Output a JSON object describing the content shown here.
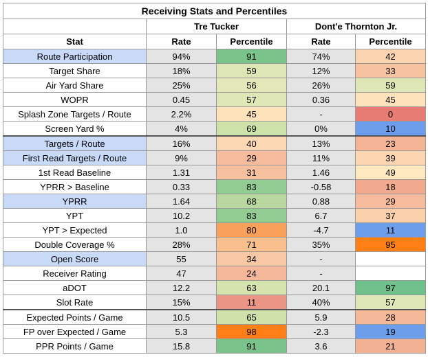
{
  "title": "Receiving Stats and Percentiles",
  "players": [
    "Tre Tucker",
    "Dont'e Thornton Jr."
  ],
  "columns": [
    "Stat",
    "Rate",
    "Percentile",
    "Rate",
    "Percentile"
  ],
  "rows": [
    [
      "Route Participation",
      "94%",
      "91",
      "74%",
      "42"
    ],
    [
      "Target Share",
      "18%",
      "59",
      "12%",
      "33"
    ],
    [
      "Air Yard Share",
      "25%",
      "56",
      "26%",
      "59"
    ],
    [
      "WOPR",
      "0.45",
      "57",
      "0.36",
      "45"
    ],
    [
      "Splash Zone Targets / Route",
      "2.2%",
      "45",
      "-",
      "0"
    ],
    [
      "Screen Yard %",
      "4%",
      "69",
      "0%",
      "10"
    ],
    [
      "Targets / Route",
      "16%",
      "40",
      "13%",
      "23"
    ],
    [
      "First Read Targets / Route",
      "9%",
      "29",
      "11%",
      "39"
    ],
    [
      "1st Read Baseline",
      "1.31",
      "31",
      "1.46",
      "49"
    ],
    [
      "YPRR > Baseline",
      "0.33",
      "83",
      "-0.58",
      "18"
    ],
    [
      "YPRR",
      "1.64",
      "68",
      "0.88",
      "29"
    ],
    [
      "YPT",
      "10.2",
      "83",
      "6.7",
      "37"
    ],
    [
      "YPT > Expected",
      "1.0",
      "80",
      "-4.7",
      "11"
    ],
    [
      "Double Coverage %",
      "28%",
      "71",
      "35%",
      "95"
    ],
    [
      "Open Score",
      "55",
      "34",
      "-",
      null
    ],
    [
      "Receiver Rating",
      "47",
      "24",
      "-",
      null
    ],
    [
      "aDOT",
      "12.2",
      "63",
      "20.1",
      "97"
    ],
    [
      "Slot Rate",
      "15%",
      "11",
      "40%",
      "57"
    ],
    [
      "Expected Points / Game",
      "10.5",
      "65",
      "5.9",
      "28"
    ],
    [
      "FP over Expected / Game",
      "5.3",
      "98",
      "-2.3",
      "19"
    ],
    [
      "PPR Points / Game",
      "15.8",
      "91",
      "3.6",
      "21"
    ]
  ]
}
